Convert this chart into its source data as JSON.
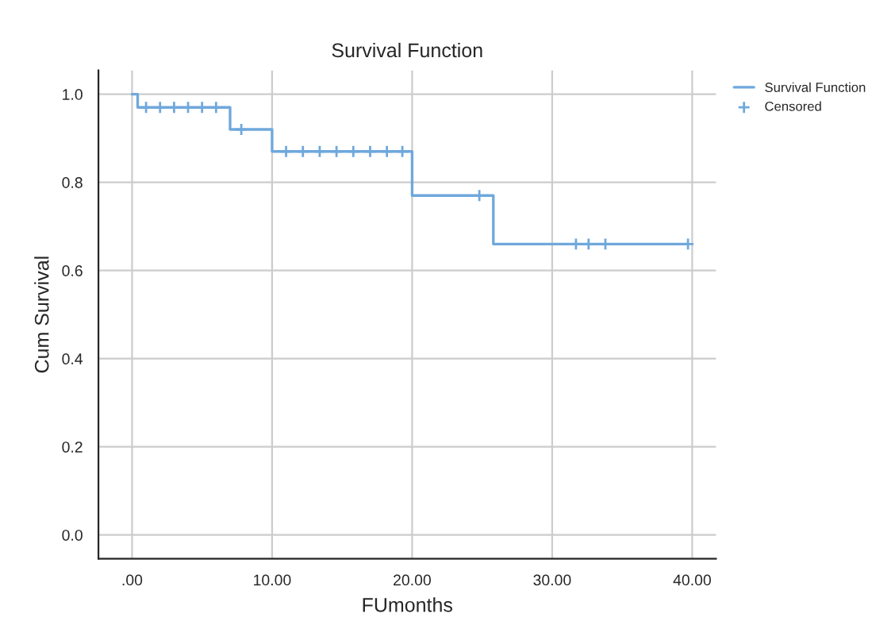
{
  "chart_data": {
    "type": "step",
    "title": "Survival Function",
    "xlabel": "FUmonths",
    "ylabel": "Cum Survival",
    "series": [
      {
        "name": "Survival Function",
        "color": "#6fa8dc",
        "marker": "none",
        "x": [
          0,
          0.4,
          7,
          10,
          20,
          25.8,
          39.7
        ],
        "values": [
          1.0,
          0.97,
          0.92,
          0.87,
          0.77,
          0.66,
          0.66
        ]
      },
      {
        "name": "Censored",
        "type": "scatter",
        "color": "#6fa8dc",
        "marker": "cross",
        "x": [
          1,
          2,
          3,
          4,
          5,
          6,
          7.8,
          11,
          12.2,
          13.4,
          14.6,
          15.8,
          17,
          18.2,
          19.3,
          24.8,
          31.7,
          32.6,
          33.8,
          39.7
        ],
        "values": [
          0.97,
          0.97,
          0.97,
          0.97,
          0.97,
          0.97,
          0.92,
          0.87,
          0.87,
          0.87,
          0.87,
          0.87,
          0.87,
          0.87,
          0.87,
          0.77,
          0.66,
          0.66,
          0.66,
          0.66
        ]
      }
    ],
    "xlim": [
      -2.4,
      41.7
    ],
    "ylim": [
      -0.054,
      1.054
    ],
    "xticks": [
      {
        "value": 0,
        "label": ".00"
      },
      {
        "value": 10,
        "label": "10.00"
      },
      {
        "value": 20,
        "label": "20.00"
      },
      {
        "value": 30,
        "label": "30.00"
      },
      {
        "value": 40,
        "label": "40.00"
      }
    ],
    "yticks": [
      {
        "value": 0,
        "label": "0.0"
      },
      {
        "value": 0.2,
        "label": "0.2"
      },
      {
        "value": 0.4,
        "label": "0.4"
      },
      {
        "value": 0.6,
        "label": "0.6"
      },
      {
        "value": 0.8,
        "label": "0.8"
      },
      {
        "value": 1.0,
        "label": "1.0"
      }
    ],
    "grid": true,
    "legend": "top right"
  }
}
